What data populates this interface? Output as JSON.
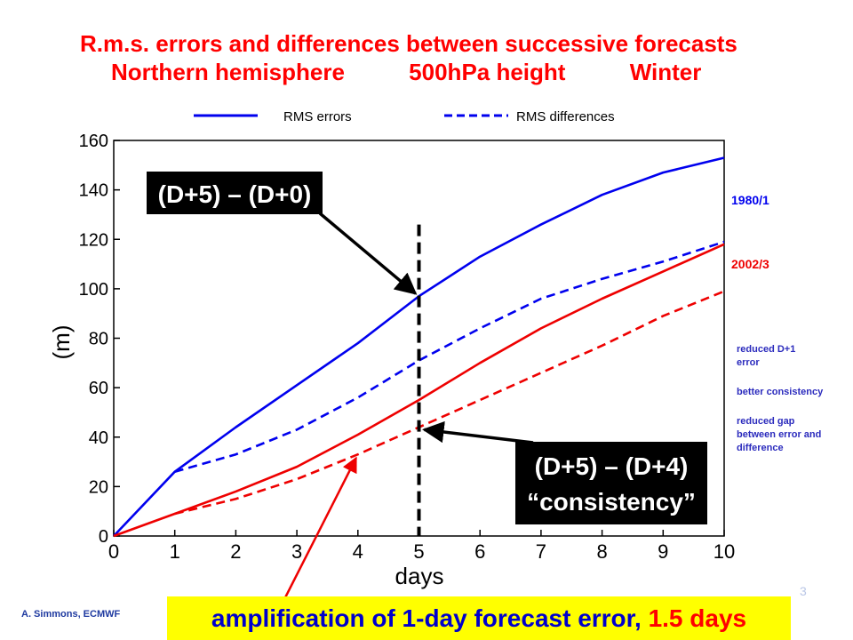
{
  "title": {
    "line1": "R.m.s. errors and differences between successive forecasts",
    "line2": "Northern hemisphere          500hPa height          Winter"
  },
  "colors": {
    "title": "#ff0000",
    "series_1980": "#0000ee",
    "series_2002": "#ee0000",
    "annotation_box": "#000000",
    "banner_bg": "#ffff00",
    "banner_text": "#0000cc",
    "banner_highlight": "#ff0000",
    "note_text": "#2b2bbd"
  },
  "chart_data": {
    "type": "line",
    "xlabel": "days",
    "ylabel": "(m)",
    "xlim": [
      0,
      10
    ],
    "ylim": [
      0,
      160
    ],
    "x_ticks": [
      0,
      1,
      2,
      3,
      4,
      5,
      6,
      7,
      8,
      9,
      10
    ],
    "y_ticks": [
      0,
      20,
      40,
      60,
      80,
      100,
      120,
      140,
      160
    ],
    "grid": false,
    "legend": {
      "placement": "top",
      "entries": [
        {
          "label": "RMS errors",
          "style": "solid"
        },
        {
          "label": "RMS differences",
          "style": "dashed"
        }
      ]
    },
    "series": [
      {
        "group": "1980/1",
        "kind": "RMS errors",
        "style": "solid",
        "color": "#0000ee",
        "x": [
          0,
          1,
          2,
          3,
          4,
          5,
          6,
          7,
          8,
          9,
          10
        ],
        "y": [
          0,
          26,
          44,
          61,
          78,
          97,
          113,
          126,
          138,
          147,
          153
        ]
      },
      {
        "group": "1980/1",
        "kind": "RMS differences",
        "style": "dashed",
        "color": "#0000ee",
        "x": [
          1,
          2,
          3,
          4,
          5,
          6,
          7,
          8,
          9,
          10
        ],
        "y": [
          26,
          33,
          43,
          56,
          71,
          84,
          96,
          104,
          111,
          119
        ]
      },
      {
        "group": "2002/3",
        "kind": "RMS errors",
        "style": "solid",
        "color": "#ee0000",
        "x": [
          0,
          1,
          2,
          3,
          4,
          5,
          6,
          7,
          8,
          9,
          10
        ],
        "y": [
          0,
          9,
          18,
          28,
          41,
          55,
          70,
          84,
          96,
          107,
          118
        ]
      },
      {
        "group": "2002/3",
        "kind": "RMS differences",
        "style": "dashed",
        "color": "#ee0000",
        "x": [
          1,
          2,
          3,
          4,
          5,
          6,
          7,
          8,
          9,
          10
        ],
        "y": [
          9,
          15,
          23,
          33,
          44,
          55,
          66,
          77,
          89,
          99
        ]
      }
    ],
    "series_labels": [
      {
        "text": "1980/1",
        "color": "#0000ee",
        "y": 136
      },
      {
        "text": "2002/3",
        "color": "#ee0000",
        "y": 110
      }
    ],
    "vertical_marker": {
      "x": 5,
      "style": "dashed",
      "y_top": 126
    },
    "annotations": [
      {
        "id": "d5-d0",
        "lines": [
          "(D+5) – (D+0)"
        ],
        "target": {
          "x": 5,
          "y": 97
        }
      },
      {
        "id": "d5-d4",
        "lines": [
          "(D+5) – (D+4)",
          "“consistency”"
        ],
        "target": {
          "x": 5,
          "y": 43
        }
      }
    ],
    "amplification_arrow_target": {
      "x": 4,
      "y": 33
    }
  },
  "side_notes": {
    "note1": "reduced D+1 error",
    "note2": "better consistency",
    "note3": "reduced gap between error and difference"
  },
  "credit": "A. Simmons, ECMWF",
  "slide_number": "3",
  "banner": {
    "text_main": "amplification of 1-day forecast error, ",
    "text_highlight": "1.5 days"
  }
}
